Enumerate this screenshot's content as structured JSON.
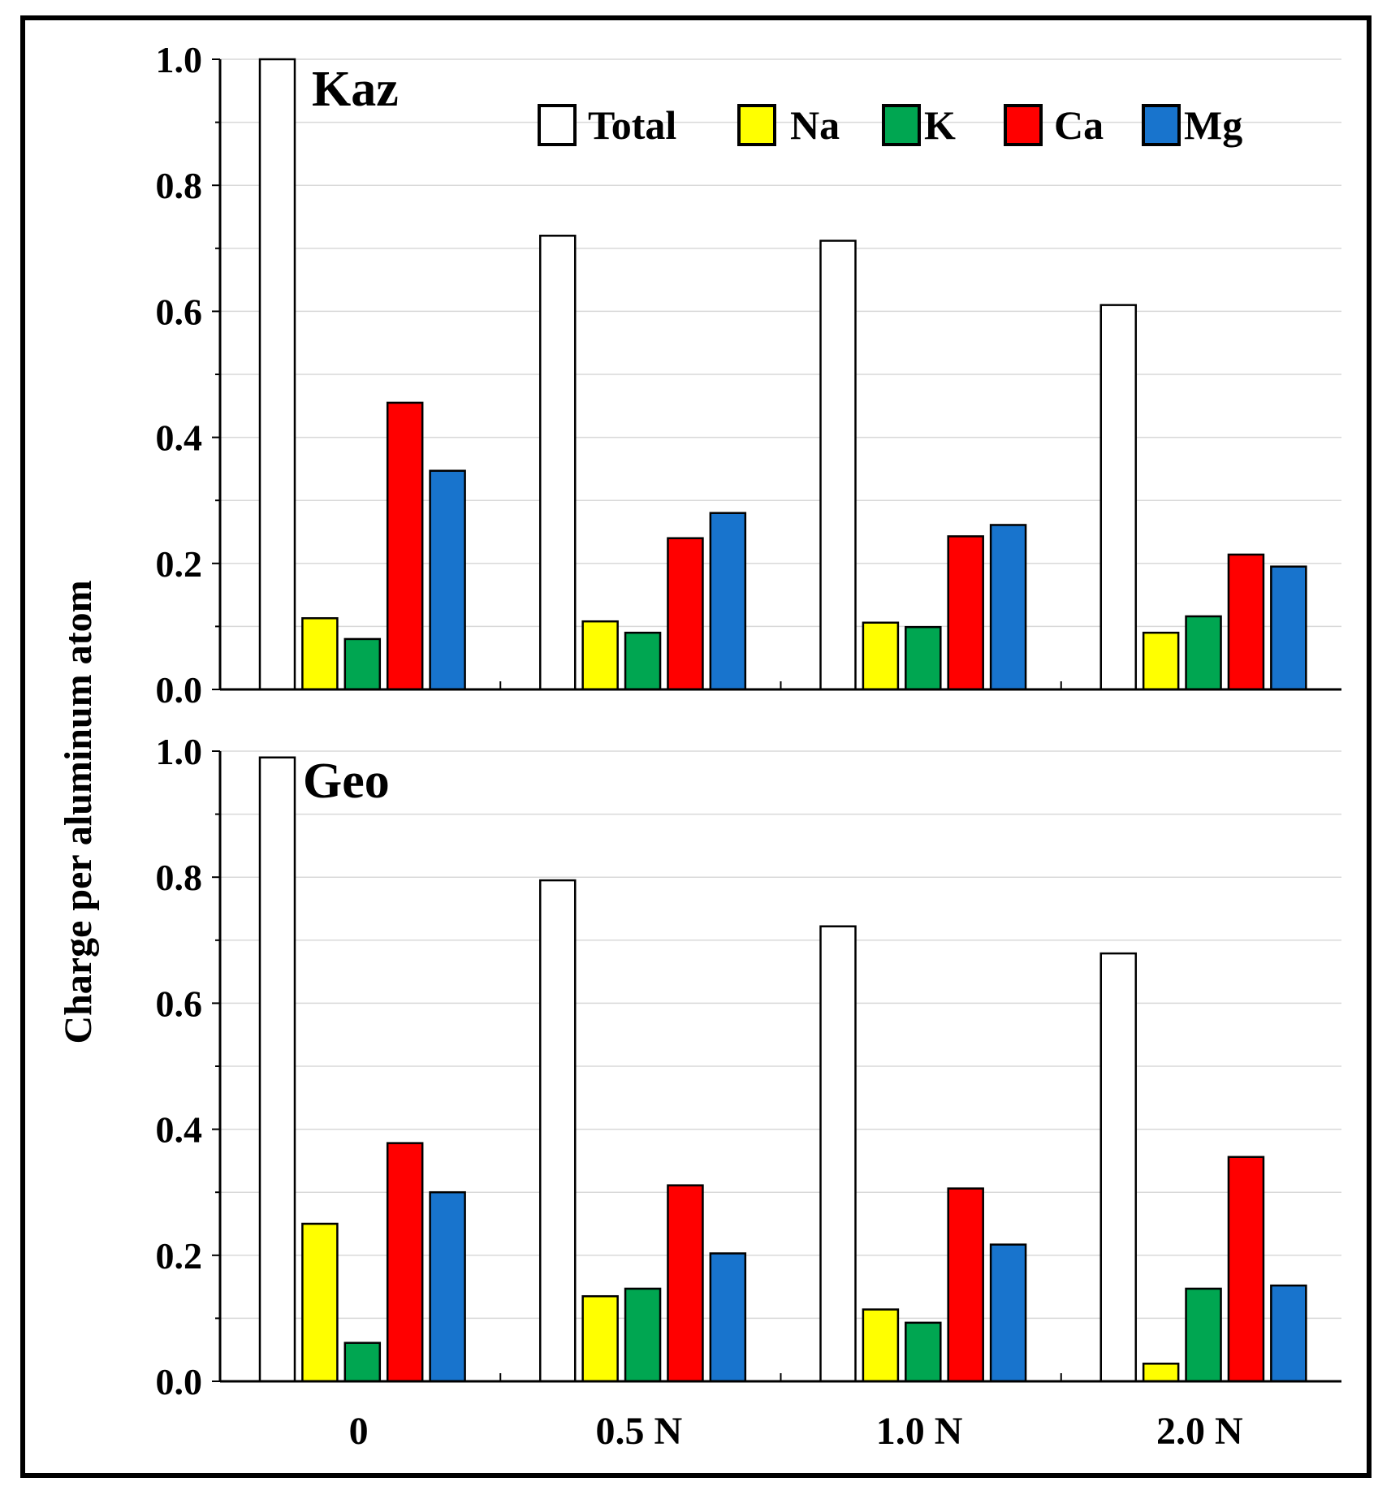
{
  "chart_data": {
    "type": "bar",
    "ylabel": "Charge per aluminum atom",
    "categories": [
      "0",
      "0.5 N",
      "1.0 N",
      "2.0 N"
    ],
    "ylim": [
      0.0,
      1.0
    ],
    "yticks": [
      "0.0",
      "0.2",
      "0.4",
      "0.6",
      "0.8",
      "1.0"
    ],
    "grid": true,
    "legend_position": "top-right",
    "legend": [
      {
        "name": "Total",
        "color": "#ffffff"
      },
      {
        "name": "Na",
        "color": "#ffff00"
      },
      {
        "name": "K",
        "color": "#00a651"
      },
      {
        "name": "Ca",
        "color": "#ff0000"
      },
      {
        "name": "Mg",
        "color": "#1874cd"
      }
    ],
    "panels": [
      {
        "title": "Kaz",
        "series": [
          {
            "name": "Total",
            "values": [
              1.0,
              0.72,
              0.712,
              0.61
            ]
          },
          {
            "name": "Na",
            "values": [
              0.113,
              0.108,
              0.106,
              0.09
            ]
          },
          {
            "name": "K",
            "values": [
              0.08,
              0.09,
              0.099,
              0.116
            ]
          },
          {
            "name": "Ca",
            "values": [
              0.455,
              0.24,
              0.243,
              0.214
            ]
          },
          {
            "name": "Mg",
            "values": [
              0.347,
              0.28,
              0.261,
              0.195
            ]
          }
        ]
      },
      {
        "title": "Geo",
        "series": [
          {
            "name": "Total",
            "values": [
              0.99,
              0.795,
              0.722,
              0.679
            ]
          },
          {
            "name": "Na",
            "values": [
              0.25,
              0.135,
              0.114,
              0.028
            ]
          },
          {
            "name": "K",
            "values": [
              0.061,
              0.147,
              0.093,
              0.147
            ]
          },
          {
            "name": "Ca",
            "values": [
              0.378,
              0.311,
              0.306,
              0.356
            ]
          },
          {
            "name": "Mg",
            "values": [
              0.3,
              0.203,
              0.217,
              0.152
            ]
          }
        ]
      }
    ]
  }
}
